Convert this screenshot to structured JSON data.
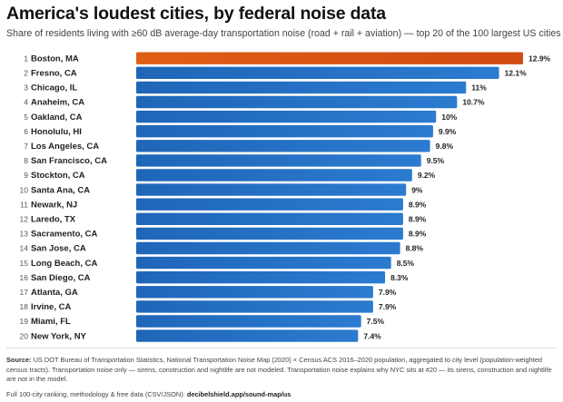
{
  "header": {
    "title": "America's loudest cities, by federal noise data",
    "subtitle": "Share of residents living with ≥60 dB average-day transportation noise (road + rail + aviation) — top 20 of the 100 largest US cities"
  },
  "colors": {
    "highlight": "#d24a12",
    "bar": "#2b7bd0"
  },
  "chart_data": {
    "type": "bar",
    "orientation": "horizontal",
    "title": "America's loudest cities, by federal noise data",
    "unit": "%",
    "ranks": [
      "1",
      "2",
      "3",
      "4",
      "5",
      "6",
      "7",
      "8",
      "9",
      "10",
      "11",
      "12",
      "13",
      "14",
      "15",
      "16",
      "17",
      "18",
      "19",
      "20"
    ],
    "categories": [
      "Boston, MA",
      "Fresno, CA",
      "Chicago, IL",
      "Anaheim, CA",
      "Oakland, CA",
      "Honolulu, HI",
      "Los Angeles, CA",
      "San Francisco, CA",
      "Stockton, CA",
      "Santa Ana, CA",
      "Newark, NJ",
      "Laredo, TX",
      "Sacramento, CA",
      "San Jose, CA",
      "Long Beach, CA",
      "San Diego, CA",
      "Atlanta, GA",
      "Irvine, CA",
      "Miami, FL",
      "New York, NY"
    ],
    "values": [
      12.9,
      12.1,
      11,
      10.7,
      10,
      9.9,
      9.8,
      9.5,
      9.2,
      9,
      8.9,
      8.9,
      8.9,
      8.8,
      8.5,
      8.3,
      7.9,
      7.9,
      7.5,
      7.4
    ],
    "value_labels": [
      "12.9%",
      "12.1%",
      "11%",
      "10.7%",
      "10%",
      "9.9%",
      "9.8%",
      "9.5%",
      "9.2%",
      "9%",
      "8.9%",
      "8.9%",
      "8.9%",
      "8.8%",
      "8.5%",
      "8.3%",
      "7.9%",
      "7.9%",
      "7.5%",
      "7.4%"
    ],
    "highlighted_index": 0,
    "xlim": [
      0,
      12.9
    ],
    "grid": false,
    "legend": "none"
  },
  "footer": {
    "source_label": "Source:",
    "source_text": "US DOT Bureau of Transportation Statistics, National Transportation Noise Map (2020) × Census ACS 2016–2020 population, aggregated to city level (population-weighted census tracts). Transportation noise only — sirens, construction and nightlife are not modeled. Transportation noise explains why NYC sits at #20 — its sirens, construction and nightlife are not in the model.",
    "full_ranking_text": "Full 100-city ranking, methodology & free data (CSV/JSON):",
    "link": "decibelshield.app/sound-map/us"
  }
}
